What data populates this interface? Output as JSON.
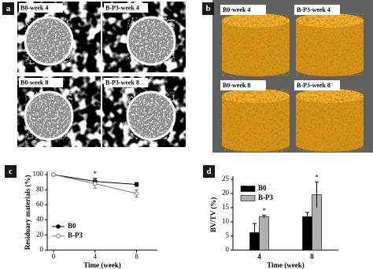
{
  "panels": [
    "a",
    "b",
    "c",
    "d"
  ],
  "images_a": [
    "B0-week 4",
    "B-P3-week 4",
    "B0-week 8",
    "B-P3-week 8"
  ],
  "images_b": [
    "B0-week 4",
    "B-P3-week 4",
    "B0-week 8",
    "B-P3-week 8"
  ],
  "chart_data": [
    {
      "type": "line",
      "x": [
        0,
        4,
        8
      ],
      "xlim": [
        -0.6,
        10
      ],
      "xticks": [
        0,
        4,
        8
      ],
      "ylim": [
        0,
        100
      ],
      "yticks": [
        0,
        20,
        40,
        60,
        80,
        100
      ],
      "xlabel": "Time (week)",
      "ylabel": "Residuary materials (%)",
      "series": [
        {
          "name": "B0",
          "color": "#000000",
          "marker": "filled",
          "values": [
            100,
            91,
            87
          ],
          "errors": [
            0,
            4,
            2.5
          ]
        },
        {
          "name": "B-P3",
          "color": "#777777",
          "marker": "open",
          "values": [
            100,
            88,
            75
          ],
          "errors": [
            0,
            6,
            5
          ]
        }
      ],
      "legend": "lower left",
      "annotations": [
        "*"
      ]
    },
    {
      "type": "bar",
      "categories": [
        "4",
        "8"
      ],
      "ylim": [
        0,
        25
      ],
      "yticks": [
        0,
        5,
        10,
        15,
        20,
        25
      ],
      "xlabel": "Time (week)",
      "ylabel": "BV/TV (%)",
      "series": [
        {
          "name": "B0",
          "color": "#000000",
          "values": [
            6.2,
            11.8
          ],
          "errors": [
            3.2,
            1.5
          ]
        },
        {
          "name": "B-P3",
          "color": "#b0b0b0",
          "values": [
            11.8,
            19.6
          ],
          "errors": [
            0.5,
            4.5
          ]
        }
      ],
      "legend": "upper left",
      "annotations": [
        "*",
        "*"
      ]
    }
  ]
}
